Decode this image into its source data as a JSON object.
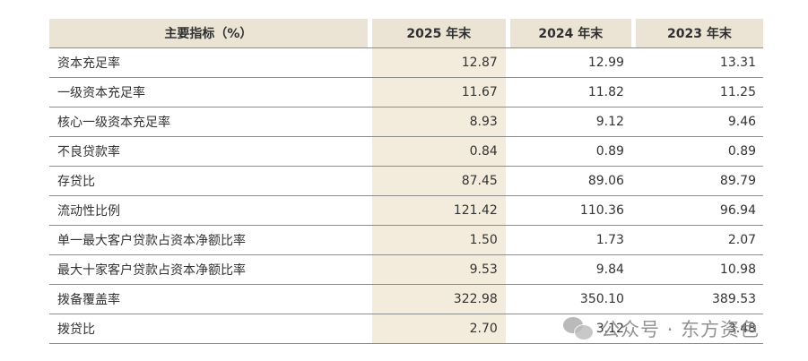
{
  "header": {
    "col0": "主要指标（%）",
    "col1": "2025 年末",
    "col2": "2024 年末",
    "col3": "2023 年末"
  },
  "rows": [
    {
      "label": "资本充足率",
      "v2025": "12.87",
      "v2024": "12.99",
      "v2023": "13.31"
    },
    {
      "label": "一级资本充足率",
      "v2025": "11.67",
      "v2024": "11.82",
      "v2023": "11.25"
    },
    {
      "label": "核心一级资本充足率",
      "v2025": "8.93",
      "v2024": "9.12",
      "v2023": "9.46"
    },
    {
      "label": "不良贷款率",
      "v2025": "0.84",
      "v2024": "0.89",
      "v2023": "0.89"
    },
    {
      "label": "存贷比",
      "v2025": "87.45",
      "v2024": "89.06",
      "v2023": "89.79"
    },
    {
      "label": "流动性比例",
      "v2025": "121.42",
      "v2024": "110.36",
      "v2023": "96.94"
    },
    {
      "label": "单一最大客户贷款占资本净额比率",
      "v2025": "1.50",
      "v2024": "1.73",
      "v2023": "2.07"
    },
    {
      "label": "最大十家客户贷款占资本净额比率",
      "v2025": "9.53",
      "v2024": "9.84",
      "v2023": "10.98"
    },
    {
      "label": "拨备覆盖率",
      "v2025": "322.98",
      "v2024": "350.10",
      "v2023": "389.53"
    },
    {
      "label": "拨贷比",
      "v2025": "2.70",
      "v2024": "3.12",
      "v2023": "3.48"
    }
  ],
  "watermark": {
    "text": "公众号 · 东方资色",
    "icon": "wechat-icon"
  },
  "colors": {
    "header_bg": "#ebe4d5",
    "highlight_col_bg": "#f3ecdc",
    "rule": "#8c8c8c"
  }
}
